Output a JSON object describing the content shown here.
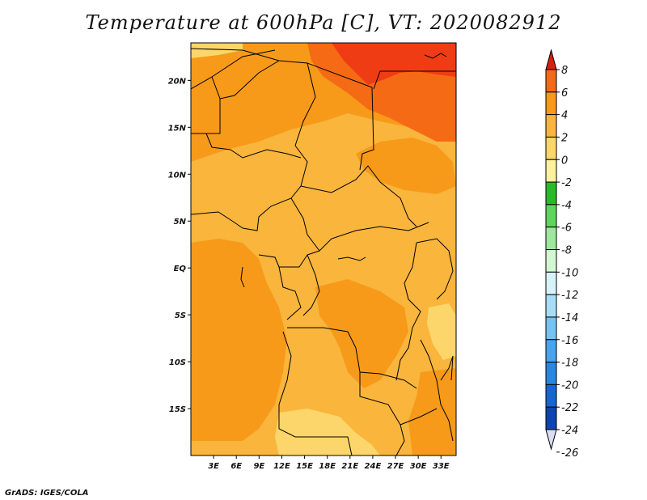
{
  "title": "Temperature at 600hPa [C], VT: 2020082912",
  "credit": "GrADS: IGES/COLA",
  "map": {
    "lon_range": [
      0,
      35
    ],
    "lat_range": [
      -20,
      24
    ],
    "lon_ticks": [
      "3E",
      "6E",
      "9E",
      "12E",
      "15E",
      "18E",
      "21E",
      "24E",
      "27E",
      "30E",
      "33E"
    ],
    "lon_tick_values": [
      3,
      6,
      9,
      12,
      15,
      18,
      21,
      24,
      27,
      30,
      33
    ],
    "lat_ticks": [
      "20N",
      "15N",
      "10N",
      "5N",
      "EQ",
      "5S",
      "10S",
      "15S"
    ],
    "lat_tick_values": [
      20,
      15,
      10,
      5,
      0,
      -5,
      -10,
      -15
    ]
  },
  "colorbar": {
    "labels": [
      "8",
      "6",
      "4",
      "2",
      "0",
      "-2",
      "-4",
      "-6",
      "-8",
      "-10",
      "-12",
      "-14",
      "-16",
      "-18",
      "-20",
      "-22",
      "-24",
      "-26"
    ],
    "colors": [
      "#f03c14",
      "#f56a14",
      "#f79a1a",
      "#f9b53c",
      "#fcd66a",
      "#fdf0a0",
      "#2bb92b",
      "#5fd35f",
      "#9ee89e",
      "#d2f7d2",
      "#d8f2fb",
      "#a9ddf6",
      "#79c2f0",
      "#4aa4ea",
      "#2b86e0",
      "#1865cf",
      "#0e44ad",
      "#06226f"
    ],
    "top_arrow_color": "#d61e0c",
    "bottom_arrow_color": "#dcdcf5"
  }
}
